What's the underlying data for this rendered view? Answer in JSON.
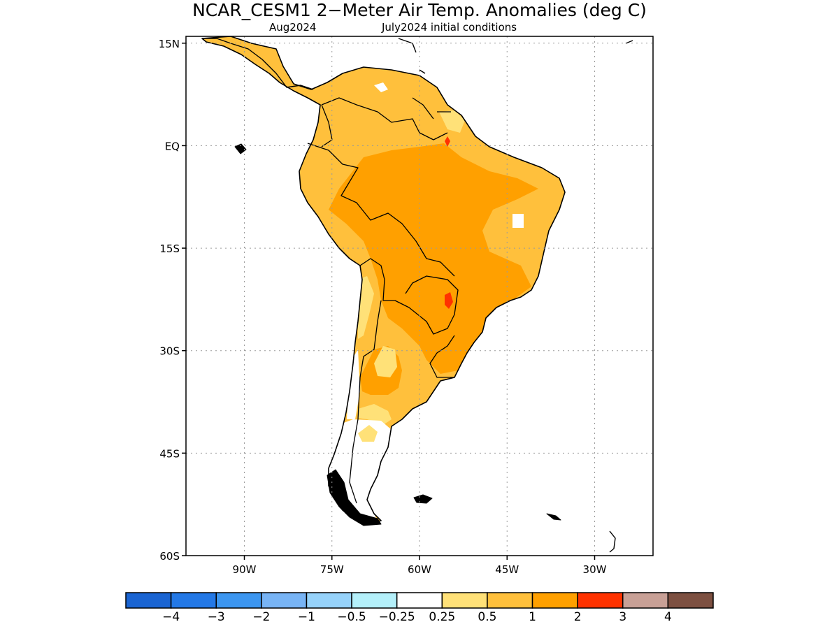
{
  "title": "NCAR_CESM1 2−Meter Air Temp. Anomalies (deg C)",
  "subtitle_left": "Aug2024",
  "subtitle_right": "July2024 initial conditions",
  "lat_labels": [
    "15N",
    "EQ",
    "15S",
    "30S",
    "45S",
    "60S"
  ],
  "lat_values": [
    15,
    0,
    -15,
    -30,
    -45,
    -60
  ],
  "lon_labels": [
    "90W",
    "75W",
    "60W",
    "45W",
    "30W"
  ],
  "lon_values": [
    -90,
    -75,
    -60,
    -45,
    -30
  ],
  "extent": {
    "lon_min": -100,
    "lon_max": -20,
    "lat_min": -60,
    "lat_max": 16
  },
  "gridlines": "dotted",
  "colorbar": {
    "colors": [
      "#1a64d2",
      "#2378e6",
      "#3c96f0",
      "#78b4f5",
      "#96d2fa",
      "#b4f0fa",
      "#ffffff",
      "#ffe178",
      "#ffc03c",
      "#ffa000",
      "#ff3200",
      "#c8a096",
      "#7d5041"
    ],
    "labels": [
      "−4",
      "−3",
      "−2",
      "−1",
      "−0.5",
      "−0.25",
      "0.25",
      "0.5",
      "1",
      "2",
      "3",
      "4"
    ],
    "values": [
      -4,
      -3,
      -2,
      -1,
      -0.5,
      -0.25,
      0.25,
      0.5,
      1,
      2,
      3,
      4
    ]
  }
}
